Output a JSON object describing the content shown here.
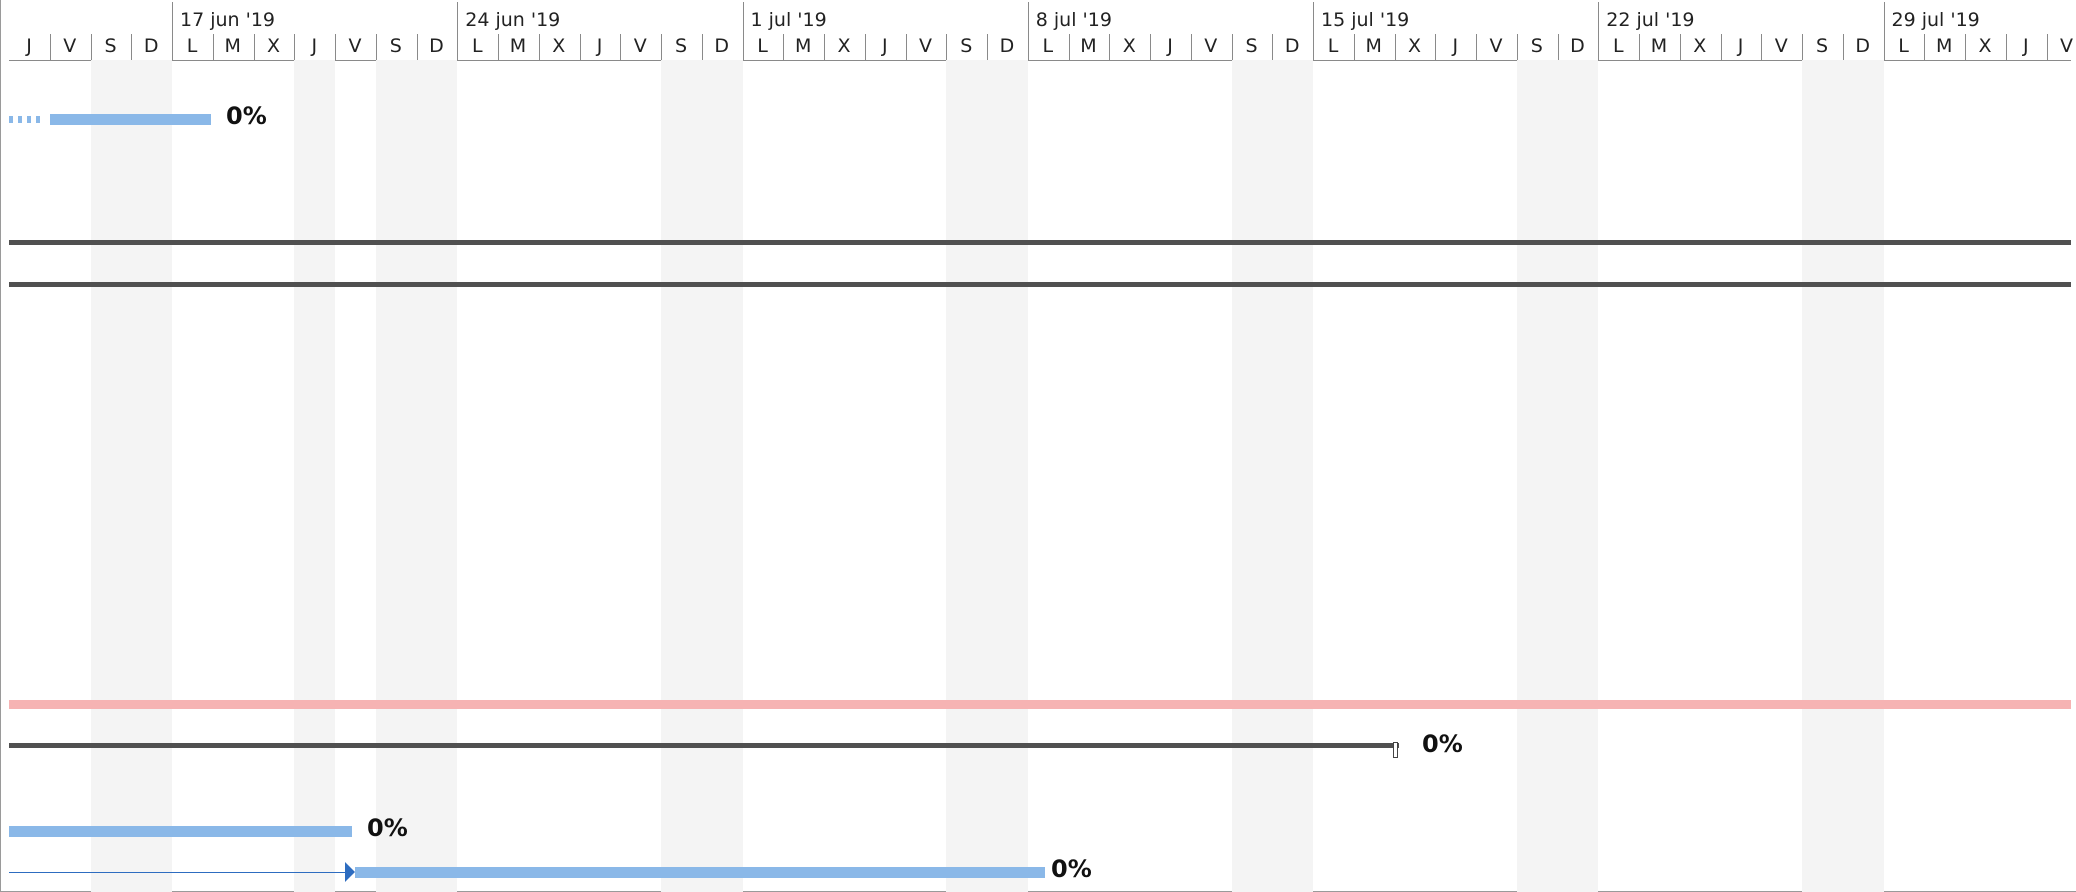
{
  "timescale": {
    "weeks": [
      "17 jun '19",
      "24 jun '19",
      "1 jul '19",
      "8 jul '19",
      "15 jul '19",
      "22 jul '19",
      "29 jul '19"
    ],
    "days": [
      "J",
      "V",
      "S",
      "D",
      "L",
      "M",
      "X",
      "J",
      "V",
      "S",
      "D",
      "L",
      "M",
      "X",
      "J",
      "V",
      "S",
      "D",
      "L",
      "M",
      "X",
      "J",
      "V",
      "S",
      "D",
      "L",
      "M",
      "X",
      "J",
      "V",
      "S",
      "D",
      "L",
      "M",
      "X",
      "J",
      "V",
      "S",
      "D",
      "L",
      "M",
      "X",
      "J",
      "V",
      "S",
      "D",
      "L",
      "M",
      "X",
      "J",
      "V"
    ]
  },
  "tasks": [
    {
      "percent": "0%",
      "kind": "task-with-split"
    },
    {
      "kind": "summary-line"
    },
    {
      "kind": "summary-line"
    },
    {
      "kind": "critical-line"
    },
    {
      "percent": "0%",
      "kind": "summary"
    },
    {
      "percent": "0%",
      "kind": "task"
    },
    {
      "percent": "0%",
      "kind": "task-linked"
    }
  ],
  "colors": {
    "task_bar": "#8ab8e8",
    "summary_bar": "#505050",
    "critical_bar": "#f6b3b3",
    "link_arrow": "#2d6cc0",
    "weekend_shade": "#f4f4f4"
  }
}
